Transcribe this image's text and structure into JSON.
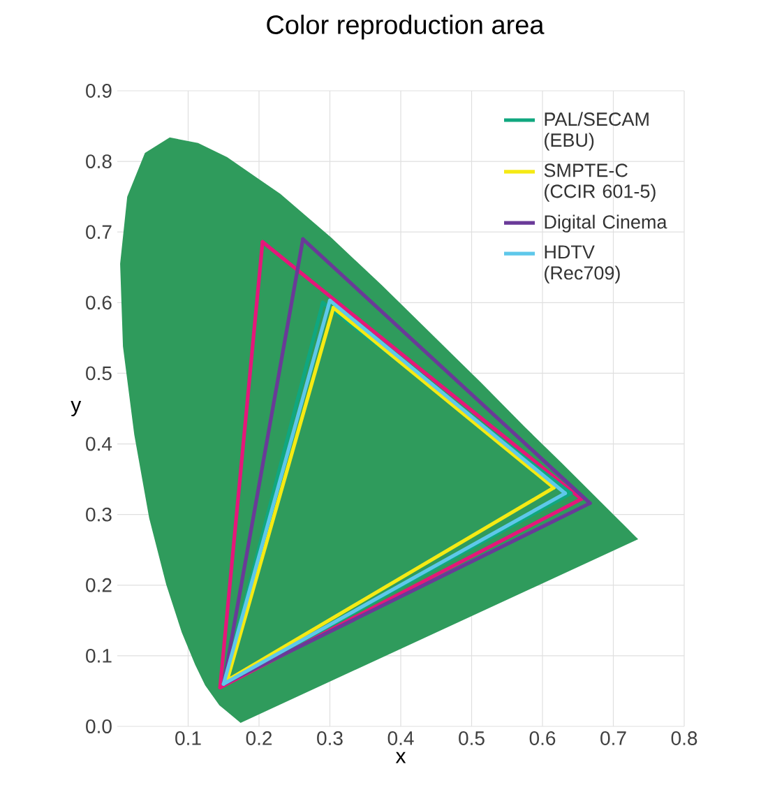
{
  "chart_data": {
    "type": "line",
    "title": "Color reproduction area",
    "xlabel": "x",
    "ylabel": "y",
    "xlim": [
      0,
      0.8
    ],
    "ylim": [
      0,
      0.9
    ],
    "xticks": [
      0.1,
      0.2,
      0.3,
      0.4,
      0.5,
      0.6,
      0.7,
      0.8
    ],
    "yticks": [
      {
        "value": 0,
        "label": "0.0"
      },
      0.1,
      0.2,
      0.3,
      0.4,
      0.5,
      0.6,
      0.7,
      0.8,
      0.9
    ],
    "grid": true,
    "legend": "top right",
    "series": [
      {
        "type": "area",
        "color": "#2f9b5c",
        "x": [
          0.174,
          0.144,
          0.124,
          0.11,
          0.091,
          0.069,
          0.045,
          0.024,
          0.008,
          0.004,
          0.014,
          0.039,
          0.074,
          0.114,
          0.155,
          0.23,
          0.302,
          0.373,
          0.444,
          0.513,
          0.575,
          0.627,
          0.692,
          0.719,
          0.735,
          0.174
        ],
        "values": [
          0.005,
          0.03,
          0.058,
          0.087,
          0.133,
          0.201,
          0.295,
          0.413,
          0.538,
          0.655,
          0.75,
          0.812,
          0.834,
          0.826,
          0.806,
          0.754,
          0.692,
          0.625,
          0.555,
          0.487,
          0.424,
          0.373,
          0.308,
          0.281,
          0.265,
          0.005
        ]
      },
      {
        "color": "#e5177a",
        "x": [
          0.145,
          0.205,
          0.655,
          0.145
        ],
        "values": [
          0.055,
          0.686,
          0.322,
          0.055
        ]
      },
      {
        "name": "PAL/SECAM (EBU)",
        "color": "#10a77f",
        "x": [
          0.15,
          0.29,
          0.64,
          0.15
        ],
        "values": [
          0.06,
          0.6,
          0.33,
          0.06
        ]
      },
      {
        "name": "SMPTE-C (CCIR 601-5)",
        "color": "#f5ea14",
        "x": [
          0.155,
          0.305,
          0.616,
          0.155
        ],
        "values": [
          0.065,
          0.593,
          0.338,
          0.065
        ]
      },
      {
        "name": "Digital Cinema",
        "color": "#6a3a98",
        "x": [
          0.15,
          0.262,
          0.667,
          0.15
        ],
        "values": [
          0.06,
          0.69,
          0.316,
          0.06
        ]
      },
      {
        "name": "HDTV (Rec709)",
        "color": "#5ec8ea",
        "x": [
          0.15,
          0.3,
          0.632,
          0.15
        ],
        "values": [
          0.06,
          0.603,
          0.33,
          0.06
        ]
      }
    ]
  }
}
